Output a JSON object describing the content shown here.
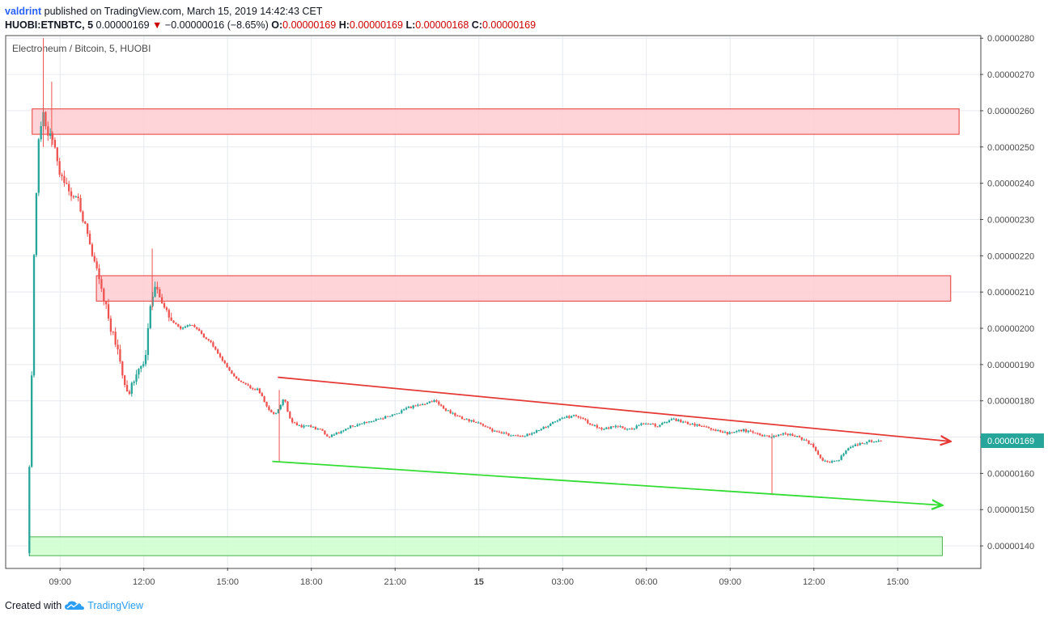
{
  "header": {
    "author": "valdrint",
    "published_text": "published on TradingView.com, March 15, 2019 14:42:43 CET",
    "symbol": "HUOBI:ETNBTC, 5",
    "last": "0.00000169",
    "change_arrow": "▼",
    "change": "−0.00000016 (−8.65%)",
    "o_label": "O:",
    "o_value": "0.00000169",
    "h_label": "H:",
    "h_value": "0.00000169",
    "l_label": "L:",
    "l_value": "0.00000168",
    "c_label": "C:",
    "c_value": "0.00000169"
  },
  "footer": {
    "created_with": "Created with",
    "brand": "TradingView",
    "brand_icon": "tradingview-cloud-icon"
  },
  "colors": {
    "up": "#26a69a",
    "down": "#ef5350",
    "resistance_fill": "#ffcdd2",
    "resistance_stroke": "#e53935",
    "support_fill": "#ccffcc",
    "support_stroke": "#4caf50",
    "upper_trendline": "#e53935",
    "lower_trendline": "#33dd33",
    "price_tag_bg": "#26a69a",
    "grid": "#e6e9ef"
  },
  "chart_data": {
    "type": "candlestick",
    "title": "Electroneum / Bitcoin, 5, HUOBI",
    "x_unit": "hours since 00:00 Mar 14, 2019 (CET)",
    "x_ticks": [
      {
        "label": "09:00",
        "x": 9
      },
      {
        "label": "12:00",
        "x": 12
      },
      {
        "label": "15:00",
        "x": 15
      },
      {
        "label": "18:00",
        "x": 18
      },
      {
        "label": "21:00",
        "x": 21
      },
      {
        "label": "15",
        "x": 24,
        "bold": true
      },
      {
        "label": "03:00",
        "x": 27
      },
      {
        "label": "06:00",
        "x": 30
      },
      {
        "label": "09:00",
        "x": 33
      },
      {
        "label": "12:00",
        "x": 36
      },
      {
        "label": "15:00",
        "x": 39
      }
    ],
    "xlim": [
      7.08,
      41.95
    ],
    "ylim": [
      1.34e-06,
      2.805e-06
    ],
    "y_ticks": [
      "0.00000140",
      "0.00000150",
      "0.00000160",
      "0.00000170",
      "0.00000180",
      "0.00000190",
      "0.00000200",
      "0.00000210",
      "0.00000220",
      "0.00000230",
      "0.00000240",
      "0.00000250",
      "0.00000260",
      "0.00000270",
      "0.00000280"
    ],
    "y_tick_values": [
      1.4e-06,
      1.5e-06,
      1.6e-06,
      1.7e-06,
      1.8e-06,
      1.9e-06,
      2e-06,
      2.1e-06,
      2.2e-06,
      2.3e-06,
      2.4e-06,
      2.5e-06,
      2.6e-06,
      2.7e-06,
      2.8e-06
    ],
    "last_price": 1.69e-06,
    "last_price_label": "0.00000169",
    "path_points": [
      [
        7.9,
        1.38e-06
      ],
      [
        8.05,
        1.8e-06
      ],
      [
        8.15,
        2.2e-06
      ],
      [
        8.3,
        2.5e-06
      ],
      [
        8.45,
        2.6e-06
      ],
      [
        8.6,
        2.55e-06
      ],
      [
        8.8,
        2.52e-06
      ],
      [
        9.1,
        2.42e-06
      ],
      [
        9.4,
        2.38e-06
      ],
      [
        9.7,
        2.36e-06
      ],
      [
        10.0,
        2.28e-06
      ],
      [
        10.3,
        2.18e-06
      ],
      [
        10.6,
        2.1e-06
      ],
      [
        10.9,
        2e-06
      ],
      [
        11.1,
        1.96e-06
      ],
      [
        11.3,
        1.88e-06
      ],
      [
        11.55,
        1.82e-06
      ],
      [
        11.8,
        1.88e-06
      ],
      [
        12.1,
        1.9e-06
      ],
      [
        12.3,
        2.05e-06
      ],
      [
        12.5,
        2.13e-06
      ],
      [
        12.8,
        2.06e-06
      ],
      [
        13.1,
        2.02e-06
      ],
      [
        13.4,
        2e-06
      ],
      [
        13.8,
        2.01e-06
      ],
      [
        14.2,
        1.98e-06
      ],
      [
        14.6,
        1.95e-06
      ],
      [
        15.0,
        1.9e-06
      ],
      [
        15.4,
        1.86e-06
      ],
      [
        15.8,
        1.84e-06
      ],
      [
        16.2,
        1.83e-06
      ],
      [
        16.5,
        1.78e-06
      ],
      [
        16.8,
        1.76e-06
      ],
      [
        17.1,
        1.81e-06
      ],
      [
        17.3,
        1.75e-06
      ],
      [
        17.6,
        1.73e-06
      ],
      [
        18.0,
        1.73e-06
      ],
      [
        18.4,
        1.72e-06
      ],
      [
        18.7,
        1.7e-06
      ],
      [
        19.0,
        1.71e-06
      ],
      [
        19.5,
        1.73e-06
      ],
      [
        20.0,
        1.74e-06
      ],
      [
        20.5,
        1.75e-06
      ],
      [
        21.0,
        1.76e-06
      ],
      [
        21.5,
        1.78e-06
      ],
      [
        22.0,
        1.79e-06
      ],
      [
        22.5,
        1.8e-06
      ],
      [
        23.0,
        1.77e-06
      ],
      [
        23.5,
        1.75e-06
      ],
      [
        24.0,
        1.74e-06
      ],
      [
        24.5,
        1.72e-06
      ],
      [
        25.0,
        1.71e-06
      ],
      [
        25.5,
        1.7e-06
      ],
      [
        26.0,
        1.71e-06
      ],
      [
        26.5,
        1.73e-06
      ],
      [
        27.0,
        1.75e-06
      ],
      [
        27.5,
        1.76e-06
      ],
      [
        28.0,
        1.74e-06
      ],
      [
        28.5,
        1.72e-06
      ],
      [
        29.0,
        1.73e-06
      ],
      [
        29.5,
        1.72e-06
      ],
      [
        30.0,
        1.74e-06
      ],
      [
        30.5,
        1.73e-06
      ],
      [
        31.0,
        1.75e-06
      ],
      [
        31.5,
        1.74e-06
      ],
      [
        32.0,
        1.73e-06
      ],
      [
        32.5,
        1.72e-06
      ],
      [
        33.0,
        1.71e-06
      ],
      [
        33.5,
        1.72e-06
      ],
      [
        34.0,
        1.71e-06
      ],
      [
        34.5,
        1.7e-06
      ],
      [
        35.0,
        1.71e-06
      ],
      [
        35.5,
        1.7e-06
      ],
      [
        36.0,
        1.68e-06
      ],
      [
        36.3,
        1.64e-06
      ],
      [
        36.6,
        1.63e-06
      ],
      [
        37.0,
        1.64e-06
      ],
      [
        37.3,
        1.67e-06
      ],
      [
        37.7,
        1.68e-06
      ],
      [
        38.1,
        1.69e-06
      ],
      [
        38.4,
        1.69e-06
      ]
    ],
    "wick_spikes": [
      {
        "x": 8.4,
        "high": 2.8e-06,
        "low": 2.5e-06
      },
      {
        "x": 8.7,
        "high": 2.68e-06,
        "low": 2.5e-06
      },
      {
        "x": 12.3,
        "high": 2.22e-06,
        "low": 2.05e-06
      },
      {
        "x": 16.85,
        "high": 1.83e-06,
        "low": 1.63e-06
      },
      {
        "x": 34.5,
        "high": 1.71e-06,
        "low": 1.54e-06
      }
    ],
    "zones": [
      {
        "kind": "resistance",
        "x_from": 8.0,
        "x_to": 41.2,
        "y_low": 2.535e-06,
        "y_high": 2.605e-06
      },
      {
        "kind": "resistance",
        "x_from": 10.3,
        "x_to": 40.9,
        "y_low": 2.075e-06,
        "y_high": 2.145e-06
      },
      {
        "kind": "support",
        "x_from": 7.9,
        "x_to": 40.6,
        "y_low": 1.373e-06,
        "y_high": 1.425e-06
      }
    ],
    "trendlines": [
      {
        "kind": "upper",
        "from": [
          16.8,
          1.865e-06
        ],
        "to": [
          40.9,
          1.688e-06
        ],
        "arrow": true
      },
      {
        "kind": "lower",
        "from": [
          16.6,
          1.633e-06
        ],
        "to": [
          40.6,
          1.512e-06
        ],
        "arrow": true
      }
    ]
  }
}
